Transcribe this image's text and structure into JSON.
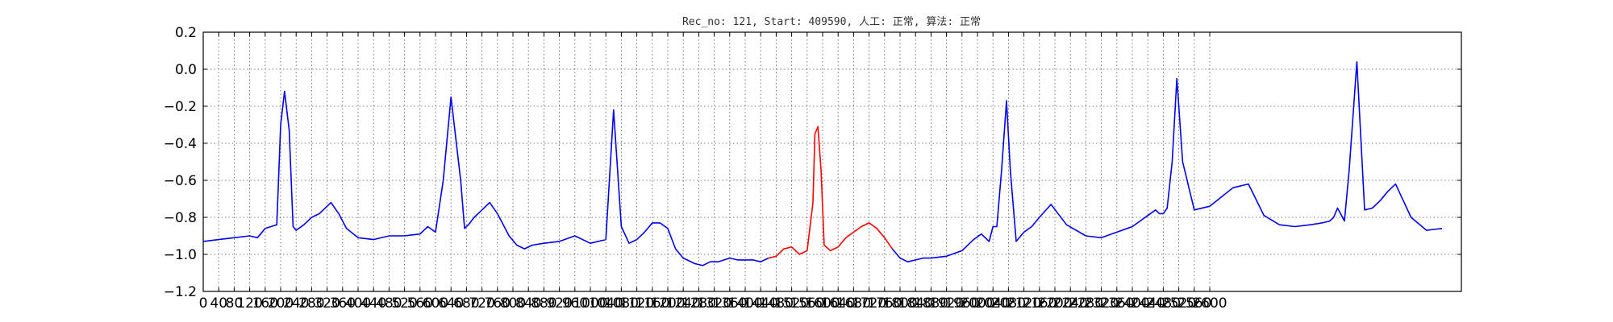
{
  "chart_data": {
    "type": "line",
    "title": "Rec_no: 121, Start: 409590, 人工: 正常, 算法: 正常",
    "xlabel": "",
    "ylabel": "",
    "xlim": [
      0,
      3250
    ],
    "ylim": [
      -1.2,
      0.2
    ],
    "grid": true,
    "grid_style": "dotted",
    "yticks": [
      0.2,
      0.0,
      -0.2,
      -0.4,
      -0.6,
      -0.8,
      -1.0,
      -1.2
    ],
    "ytick_labels": [
      "0.2",
      "0.0",
      "−0.2",
      "−0.4",
      "−0.6",
      "−0.8",
      "−1.0",
      "−1.2"
    ],
    "xticks": [
      0,
      40,
      80,
      120,
      160,
      200,
      240,
      280,
      320,
      360,
      400,
      440,
      480,
      520,
      560,
      600,
      640,
      680,
      720,
      760,
      800,
      840,
      880,
      920,
      960,
      1000,
      1040,
      1080,
      1120,
      1160,
      1200,
      1240,
      1280,
      1320,
      1360,
      1400,
      1440,
      1480,
      1520,
      1560,
      1600,
      1640,
      1680,
      1720,
      1760,
      1800,
      1840,
      1880,
      1920,
      1960,
      2000,
      2040,
      2080,
      2120,
      2160,
      2200,
      2240,
      2280,
      2320,
      2360,
      2400,
      2440,
      2480,
      2520,
      2560,
      2600
    ],
    "xtick_labels": [
      "0",
      "40",
      "80",
      "120",
      "160",
      "200",
      "240",
      "280",
      "320",
      "360",
      "400",
      "440",
      "480",
      "520",
      "560",
      "600",
      "640",
      "680",
      "720",
      "760",
      "800",
      "840",
      "880",
      "920",
      "960",
      "1000",
      "1040",
      "1080",
      "1120",
      "1160",
      "1200",
      "1240",
      "1280",
      "1320",
      "1360",
      "1400",
      "1440",
      "1480",
      "1520",
      "1560",
      "1600",
      "1640",
      "1680",
      "1720",
      "1760",
      "1800",
      "1840",
      "1880",
      "1920",
      "1960",
      "2000",
      "2040",
      "2080",
      "2120",
      "2160",
      "2200",
      "2240",
      "2280",
      "2320",
      "2360",
      "2400",
      "2440",
      "2480",
      "2520",
      "2560",
      "2600"
    ],
    "series": [
      {
        "color": "#0000ee",
        "x": [
          0,
          40,
          80,
          120,
          140,
          160,
          190,
          200,
          210,
          222,
          232,
          240,
          260,
          280,
          300,
          330,
          350,
          370,
          400,
          440,
          480,
          520,
          560,
          580,
          600,
          620,
          640,
          665,
          675,
          685,
          700,
          720,
          740,
          760,
          790,
          810,
          830,
          850,
          880,
          920,
          960,
          1000,
          1040,
          1060,
          1080,
          1100,
          1120,
          1140,
          1160,
          1180,
          1200,
          1220,
          1240,
          1270,
          1290,
          1310,
          1330,
          1360,
          1380,
          1400,
          1420,
          1440,
          1460
        ],
        "y": [
          -0.93,
          -0.92,
          -0.91,
          -0.9,
          -0.91,
          -0.86,
          -0.84,
          -0.3,
          -0.12,
          -0.33,
          -0.85,
          -0.87,
          -0.84,
          -0.8,
          -0.78,
          -0.72,
          -0.78,
          -0.86,
          -0.91,
          -0.92,
          -0.9,
          -0.9,
          -0.89,
          -0.85,
          -0.88,
          -0.6,
          -0.15,
          -0.6,
          -0.86,
          -0.84,
          -0.8,
          -0.76,
          -0.72,
          -0.78,
          -0.9,
          -0.95,
          -0.97,
          -0.95,
          -0.94,
          -0.93,
          -0.9,
          -0.94,
          -0.92,
          -0.22,
          -0.85,
          -0.94,
          -0.92,
          -0.88,
          -0.83,
          -0.83,
          -0.86,
          -0.97,
          -1.02,
          -1.05,
          -1.06,
          -1.04,
          -1.04,
          -1.02,
          -1.03,
          -1.03,
          -1.03,
          -1.04,
          -1.02
        ]
      },
      {
        "color": "#ff0000",
        "x": [
          1460,
          1480,
          1500,
          1520,
          1540,
          1560,
          1575,
          1580,
          1588,
          1596,
          1604,
          1620,
          1640,
          1660,
          1680,
          1700,
          1720,
          1740,
          1760,
          1780
        ],
        "y": [
          -1.02,
          -1.01,
          -0.97,
          -0.96,
          -1.0,
          -0.98,
          -0.72,
          -0.35,
          -0.31,
          -0.55,
          -0.95,
          -0.98,
          -0.96,
          -0.91,
          -0.88,
          -0.85,
          -0.83,
          -0.86,
          -0.91,
          -0.97
        ]
      },
      {
        "color": "#0000ee",
        "x": [
          1780,
          1800,
          1820,
          1840,
          1860,
          1880,
          1920,
          1960,
          1990,
          2010,
          2030,
          2040,
          2050,
          2062,
          2075,
          2085,
          2100,
          2120,
          2140,
          2160,
          2190,
          2230,
          2280,
          2320,
          2360,
          2400,
          2420,
          2440,
          2460,
          2470,
          2480,
          2490,
          2503,
          2515,
          2530,
          2560,
          2600,
          2630,
          2660,
          2700,
          2740,
          2780,
          2820,
          2860,
          2890,
          2910,
          2920,
          2930,
          2938,
          2948,
          2960,
          2980,
          3000,
          3020,
          3040,
          3060,
          3080,
          3120,
          3160,
          3200
        ],
        "y": [
          -0.97,
          -1.02,
          -1.04,
          -1.03,
          -1.02,
          -1.02,
          -1.01,
          -0.98,
          -0.92,
          -0.89,
          -0.93,
          -0.85,
          -0.85,
          -0.55,
          -0.17,
          -0.55,
          -0.93,
          -0.88,
          -0.85,
          -0.8,
          -0.73,
          -0.84,
          -0.9,
          -0.91,
          -0.88,
          -0.85,
          -0.82,
          -0.79,
          -0.76,
          -0.78,
          -0.78,
          -0.75,
          -0.5,
          -0.05,
          -0.5,
          -0.76,
          -0.74,
          -0.69,
          -0.64,
          -0.62,
          -0.79,
          -0.84,
          -0.85,
          -0.84,
          -0.83,
          -0.82,
          -0.8,
          -0.75,
          -0.78,
          -0.82,
          -0.55,
          0.04,
          -0.76,
          -0.75,
          -0.71,
          -0.66,
          -0.62,
          -0.8,
          -0.87,
          -0.86
        ]
      }
    ]
  }
}
